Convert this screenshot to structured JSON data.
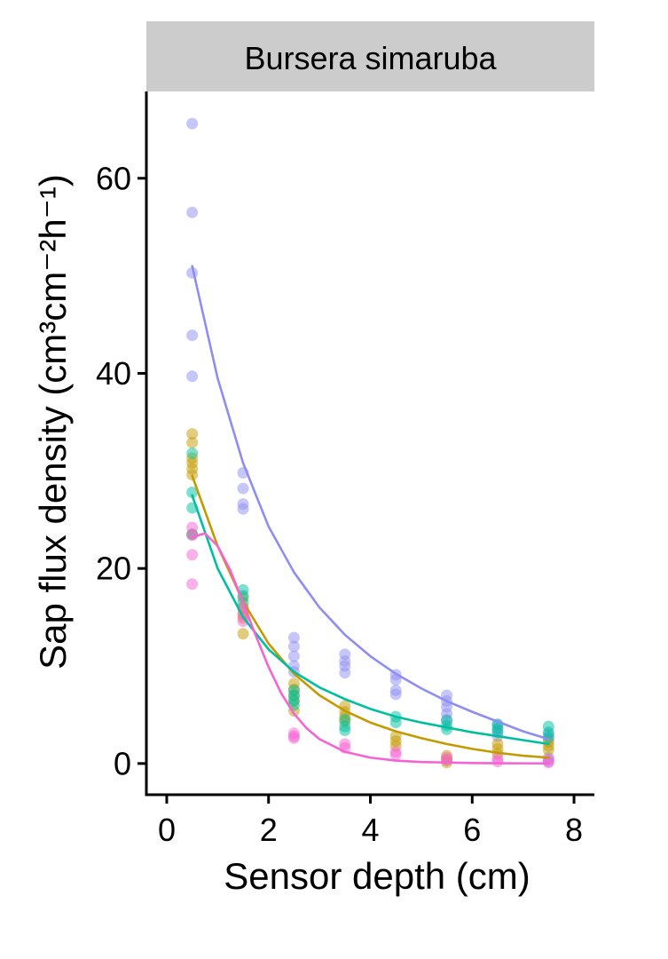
{
  "chart_data": {
    "type": "scatter",
    "facet_title": "Bursera simaruba",
    "xlabel": "Sensor depth (cm)",
    "ylabel": "Sap flux density (cm³cm⁻²h⁻¹)",
    "xlim": [
      -0.4,
      8.4
    ],
    "ylim": [
      -3.2,
      68.9
    ],
    "x_ticks": [
      0,
      2,
      4,
      6,
      8
    ],
    "y_ticks": [
      0,
      20,
      40,
      60
    ],
    "grid": false,
    "legend": "none",
    "series": [
      {
        "color": "#8e8ef2",
        "points": [
          [
            0.5,
            65.6
          ],
          [
            0.5,
            56.5
          ],
          [
            0.5,
            50.3
          ],
          [
            0.5,
            43.9
          ],
          [
            0.5,
            39.7
          ],
          [
            1.5,
            29.8
          ],
          [
            1.5,
            28.2
          ],
          [
            1.5,
            26.6
          ],
          [
            1.5,
            26.1
          ],
          [
            2.5,
            12.9
          ],
          [
            2.5,
            12.0
          ],
          [
            2.5,
            11.0
          ],
          [
            2.5,
            10.0
          ],
          [
            2.5,
            9.4
          ],
          [
            3.5,
            11.2
          ],
          [
            3.5,
            10.5
          ],
          [
            3.5,
            10.0
          ],
          [
            3.5,
            9.3
          ],
          [
            4.5,
            9.1
          ],
          [
            4.5,
            8.6
          ],
          [
            4.5,
            7.5
          ],
          [
            4.5,
            7.1
          ],
          [
            5.5,
            7.0
          ],
          [
            5.5,
            6.4
          ],
          [
            5.5,
            5.8
          ],
          [
            5.5,
            5.1
          ],
          [
            5.5,
            4.5
          ],
          [
            6.5,
            4.0
          ],
          [
            6.5,
            3.4
          ],
          [
            6.5,
            2.8
          ],
          [
            7.5,
            3.0
          ],
          [
            7.5,
            2.5
          ],
          [
            7.5,
            0.6
          ],
          [
            7.5,
            0.2
          ]
        ],
        "fit": [
          [
            0.5,
            51.0
          ],
          [
            1.0,
            39.5
          ],
          [
            1.5,
            30.8
          ],
          [
            2.0,
            24.3
          ],
          [
            2.5,
            19.6
          ],
          [
            3.0,
            16.0
          ],
          [
            3.5,
            13.2
          ],
          [
            4.0,
            11.0
          ],
          [
            4.5,
            9.2
          ],
          [
            5.0,
            7.7
          ],
          [
            5.5,
            6.4
          ],
          [
            6.0,
            5.3
          ],
          [
            6.5,
            4.3
          ],
          [
            7.0,
            3.3
          ],
          [
            7.5,
            2.5
          ]
        ]
      },
      {
        "color": "#c49a00",
        "points": [
          [
            0.5,
            33.8
          ],
          [
            0.5,
            32.9
          ],
          [
            0.5,
            31.3
          ],
          [
            0.5,
            30.8
          ],
          [
            0.5,
            30.2
          ],
          [
            0.5,
            29.6
          ],
          [
            0.5,
            23.5
          ],
          [
            1.5,
            17.0
          ],
          [
            1.5,
            16.0
          ],
          [
            1.5,
            15.4
          ],
          [
            1.5,
            14.9
          ],
          [
            1.5,
            13.3
          ],
          [
            2.5,
            8.2
          ],
          [
            2.5,
            7.6
          ],
          [
            2.5,
            7.0
          ],
          [
            2.5,
            6.4
          ],
          [
            2.5,
            5.4
          ],
          [
            3.5,
            5.9
          ],
          [
            3.5,
            5.3
          ],
          [
            3.5,
            4.8
          ],
          [
            3.5,
            4.3
          ],
          [
            4.5,
            2.8
          ],
          [
            4.5,
            2.3
          ],
          [
            4.5,
            1.8
          ],
          [
            5.5,
            0.8
          ],
          [
            5.5,
            0.4
          ],
          [
            5.5,
            0.1
          ],
          [
            6.5,
            2.0
          ],
          [
            6.5,
            1.5
          ],
          [
            6.5,
            1.0
          ],
          [
            7.5,
            2.2
          ],
          [
            7.5,
            1.8
          ],
          [
            7.5,
            1.4
          ]
        ],
        "fit": [
          [
            0.5,
            29.5
          ],
          [
            1.0,
            22.3
          ],
          [
            1.5,
            16.6
          ],
          [
            2.0,
            12.3
          ],
          [
            2.5,
            9.2
          ],
          [
            3.0,
            7.0
          ],
          [
            3.5,
            5.4
          ],
          [
            4.0,
            4.2
          ],
          [
            4.5,
            3.3
          ],
          [
            5.0,
            2.6
          ],
          [
            5.5,
            2.0
          ],
          [
            6.0,
            1.5
          ],
          [
            6.5,
            1.1
          ],
          [
            7.0,
            0.8
          ],
          [
            7.5,
            0.6
          ]
        ]
      },
      {
        "color": "#00bfa0",
        "points": [
          [
            0.5,
            31.8
          ],
          [
            0.5,
            27.8
          ],
          [
            0.5,
            26.2
          ],
          [
            0.5,
            23.5
          ],
          [
            1.5,
            17.8
          ],
          [
            1.5,
            17.2
          ],
          [
            1.5,
            16.5
          ],
          [
            2.5,
            7.5
          ],
          [
            2.5,
            7.0
          ],
          [
            2.5,
            6.5
          ],
          [
            2.5,
            6.0
          ],
          [
            3.5,
            4.5
          ],
          [
            3.5,
            3.8
          ],
          [
            3.5,
            3.4
          ],
          [
            4.5,
            4.8
          ],
          [
            4.5,
            4.2
          ],
          [
            5.5,
            4.4
          ],
          [
            5.5,
            3.9
          ],
          [
            5.5,
            3.5
          ],
          [
            6.5,
            4.0
          ],
          [
            6.5,
            3.6
          ],
          [
            6.5,
            3.2
          ],
          [
            7.5,
            3.8
          ],
          [
            7.5,
            3.2
          ],
          [
            7.5,
            2.7
          ]
        ],
        "fit": [
          [
            0.5,
            27.5
          ],
          [
            1.0,
            20.0
          ],
          [
            1.5,
            15.0
          ],
          [
            2.0,
            11.7
          ],
          [
            2.5,
            9.4
          ],
          [
            3.0,
            7.8
          ],
          [
            3.5,
            6.6
          ],
          [
            4.0,
            5.6
          ],
          [
            4.5,
            4.8
          ],
          [
            5.0,
            4.2
          ],
          [
            5.5,
            3.7
          ],
          [
            6.0,
            3.2
          ],
          [
            6.5,
            2.8
          ],
          [
            7.0,
            2.4
          ],
          [
            7.5,
            2.0
          ]
        ]
      },
      {
        "color": "#f564d4",
        "points": [
          [
            0.5,
            24.2
          ],
          [
            0.5,
            23.4
          ],
          [
            0.5,
            21.4
          ],
          [
            0.5,
            18.4
          ],
          [
            1.5,
            15.9
          ],
          [
            1.5,
            15.2
          ],
          [
            1.5,
            14.6
          ],
          [
            2.5,
            3.1
          ],
          [
            2.5,
            2.8
          ],
          [
            2.5,
            2.6
          ],
          [
            3.5,
            2.0
          ],
          [
            3.5,
            1.6
          ],
          [
            4.5,
            1.2
          ],
          [
            4.5,
            0.9
          ],
          [
            5.5,
            0.6
          ],
          [
            5.5,
            0.3
          ],
          [
            6.5,
            0.5
          ],
          [
            6.5,
            0.2
          ],
          [
            7.5,
            0.4
          ],
          [
            7.5,
            0.1
          ]
        ],
        "fit": [
          [
            0.5,
            23.2
          ],
          [
            0.75,
            23.6
          ],
          [
            1.0,
            22.3
          ],
          [
            1.25,
            19.8
          ],
          [
            1.5,
            16.5
          ],
          [
            1.75,
            13.1
          ],
          [
            2.0,
            9.9
          ],
          [
            2.25,
            7.2
          ],
          [
            2.5,
            5.1
          ],
          [
            2.75,
            3.6
          ],
          [
            3.0,
            2.5
          ],
          [
            3.5,
            1.2
          ],
          [
            4.0,
            0.6
          ],
          [
            4.5,
            0.3
          ],
          [
            5.0,
            0.15
          ],
          [
            5.5,
            0.1
          ],
          [
            6.0,
            0.05
          ],
          [
            6.5,
            0.03
          ],
          [
            7.0,
            0.02
          ],
          [
            7.5,
            0.01
          ]
        ]
      }
    ]
  }
}
